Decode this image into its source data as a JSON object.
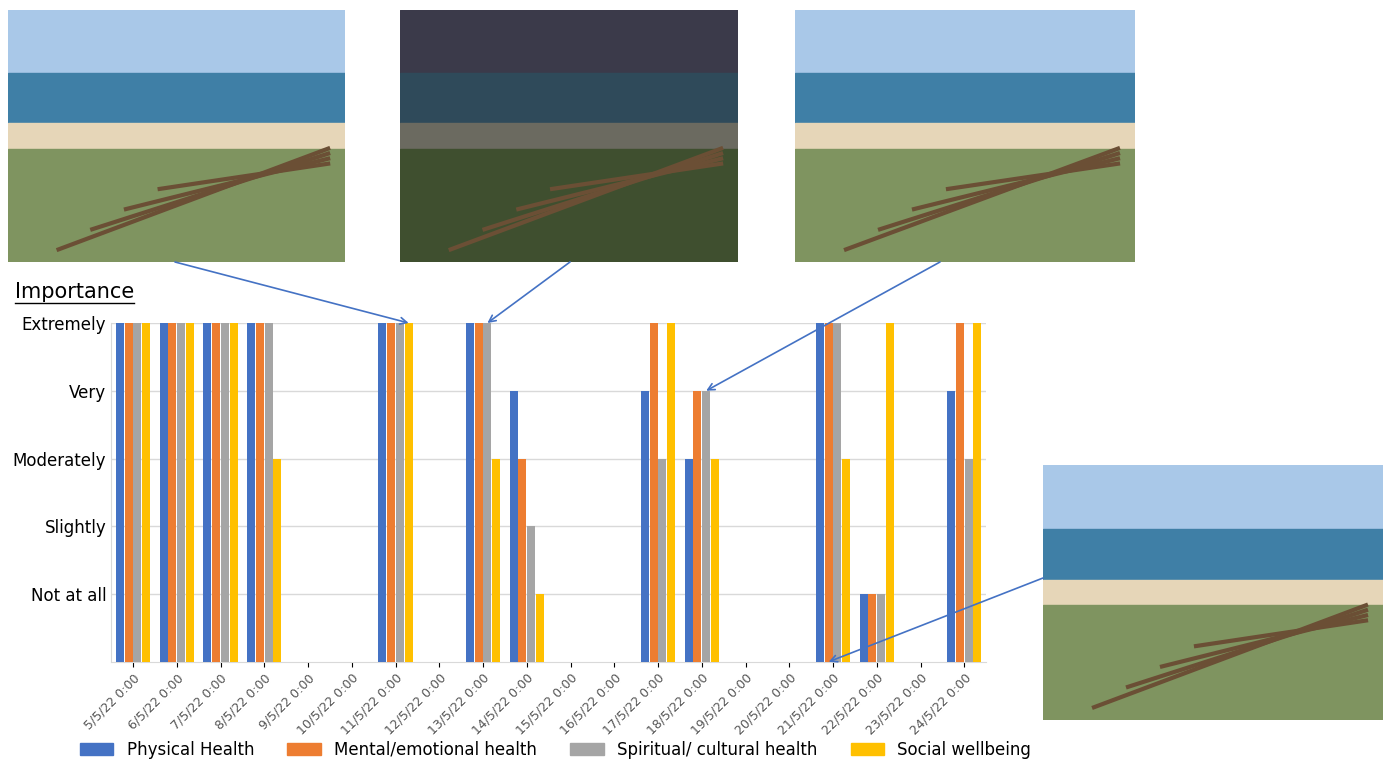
{
  "chart_data": {
    "type": "bar",
    "y_label": "Importance",
    "categories": [
      "5/5/22 0:00",
      "6/5/22 0:00",
      "7/5/22 0:00",
      "8/5/22 0:00",
      "9/5/22 0:00",
      "10/5/22 0:00",
      "11/5/22 0:00",
      "12/5/22 0:00",
      "13/5/22 0:00",
      "14/5/22 0:00",
      "15/5/22 0:00",
      "16/5/22 0:00",
      "17/5/22 0:00",
      "18/5/22 0:00",
      "19/5/22 0:00",
      "20/5/22 0:00",
      "21/5/22 0:00",
      "22/5/22 0:00",
      "23/5/22 0:00",
      "24/5/22 0:00"
    ],
    "series": [
      {
        "name": "Physical Health",
        "color": "#4472C4",
        "values": [
          5,
          5,
          5,
          5,
          null,
          null,
          5,
          null,
          5,
          4,
          null,
          null,
          4,
          3,
          null,
          null,
          5,
          1,
          null,
          4
        ]
      },
      {
        "name": "Mental/emotional health",
        "color": "#ED7D31",
        "values": [
          5,
          5,
          5,
          5,
          null,
          null,
          5,
          null,
          5,
          3,
          null,
          null,
          5,
          4,
          null,
          null,
          5,
          1,
          null,
          5
        ]
      },
      {
        "name": "Spiritual/ cultural health",
        "color": "#A5A5A5",
        "values": [
          5,
          5,
          5,
          5,
          null,
          null,
          5,
          null,
          5,
          2,
          null,
          null,
          3,
          4,
          null,
          null,
          5,
          1,
          null,
          3
        ]
      },
      {
        "name": "Social wellbeing",
        "color": "#FFC000",
        "values": [
          5,
          5,
          5,
          3,
          null,
          null,
          5,
          null,
          3,
          1,
          null,
          null,
          5,
          3,
          null,
          null,
          3,
          5,
          null,
          5
        ]
      }
    ],
    "ylim": [
      0,
      5
    ],
    "yticks": [
      {
        "value": 1,
        "label": "Not at all"
      },
      {
        "value": 2,
        "label": "Slightly"
      },
      {
        "value": 3,
        "label": "Moderately"
      },
      {
        "value": 4,
        "label": "Very"
      },
      {
        "value": 5,
        "label": "Extremely"
      }
    ],
    "grid": true,
    "legend": "lower center"
  }
}
